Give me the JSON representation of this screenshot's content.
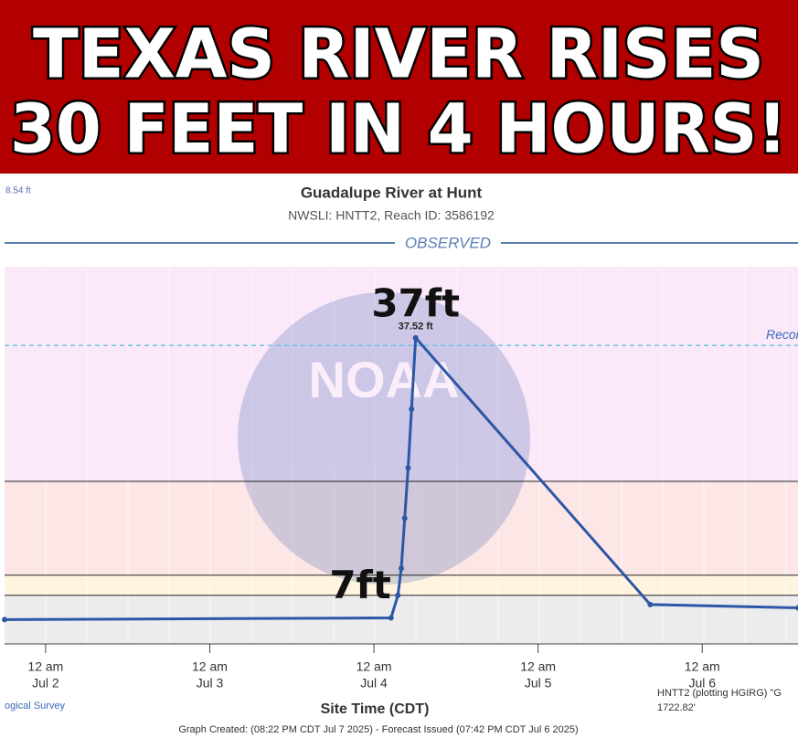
{
  "header": {
    "line1": "TEXAS RIVER RISES",
    "line2": "30 FEET IN 4 HOURS!"
  },
  "chart_data": {
    "type": "line",
    "title": "Guadalupe River at Hunt",
    "subtitle": "NWSLI: HNTT2, Reach ID: 3586192",
    "section_label": "OBSERVED",
    "corner_label": "8.54 ft",
    "watermark": "NOAA",
    "x_label": "Site Time (CDT)",
    "credit": "ogical Survey",
    "note_lines": [
      "HNTT2 (plotting HGIRG) \"G",
      "1722.82'"
    ],
    "footer": "Graph Created: (08:22 PM CDT Jul 7 2025) - Forecast Issued (07:42 PM CDT Jul 6 2025)",
    "xlim": [
      -6,
      110
    ],
    "ylim": [
      1,
      46
    ],
    "xticks": [
      {
        "value": 0,
        "label": "12 am",
        "date": "Jul 2"
      },
      {
        "value": 24,
        "label": "12 am",
        "date": "Jul 3"
      },
      {
        "value": 48,
        "label": "12 am",
        "date": "Jul 4"
      },
      {
        "value": 72,
        "label": "12 am",
        "date": "Jul 5"
      },
      {
        "value": 96,
        "label": "12 am",
        "date": "Jul 6"
      }
    ],
    "below_color": "#ececec",
    "levels": [
      {
        "value": 6.8,
        "color": "#fff4e0"
      },
      {
        "value": 9.2,
        "color": "#fde7e6"
      },
      {
        "value": 20.4,
        "color": "#fbe8f9"
      }
    ],
    "record": {
      "value": 36.6,
      "label": "Record",
      "color": "#6cc6e6"
    },
    "series": [
      {
        "name": "Observed",
        "color": "#2c57a6",
        "x": [
          -6,
          50.5,
          51.5,
          52,
          52.5,
          53,
          53.5,
          54.1,
          88.4,
          110
        ],
        "values": [
          3.9,
          4.1,
          6.8,
          10,
          16,
          22,
          29,
          37.52,
          5.7,
          5.3
        ]
      }
    ],
    "peak_index": 7,
    "value_labels": [
      "37.52 ft"
    ],
    "annotations": [
      {
        "text": "37ft",
        "x": 54.1,
        "y": 41.3
      },
      {
        "text": "7ft",
        "x": 46,
        "y": 7.7
      }
    ]
  }
}
